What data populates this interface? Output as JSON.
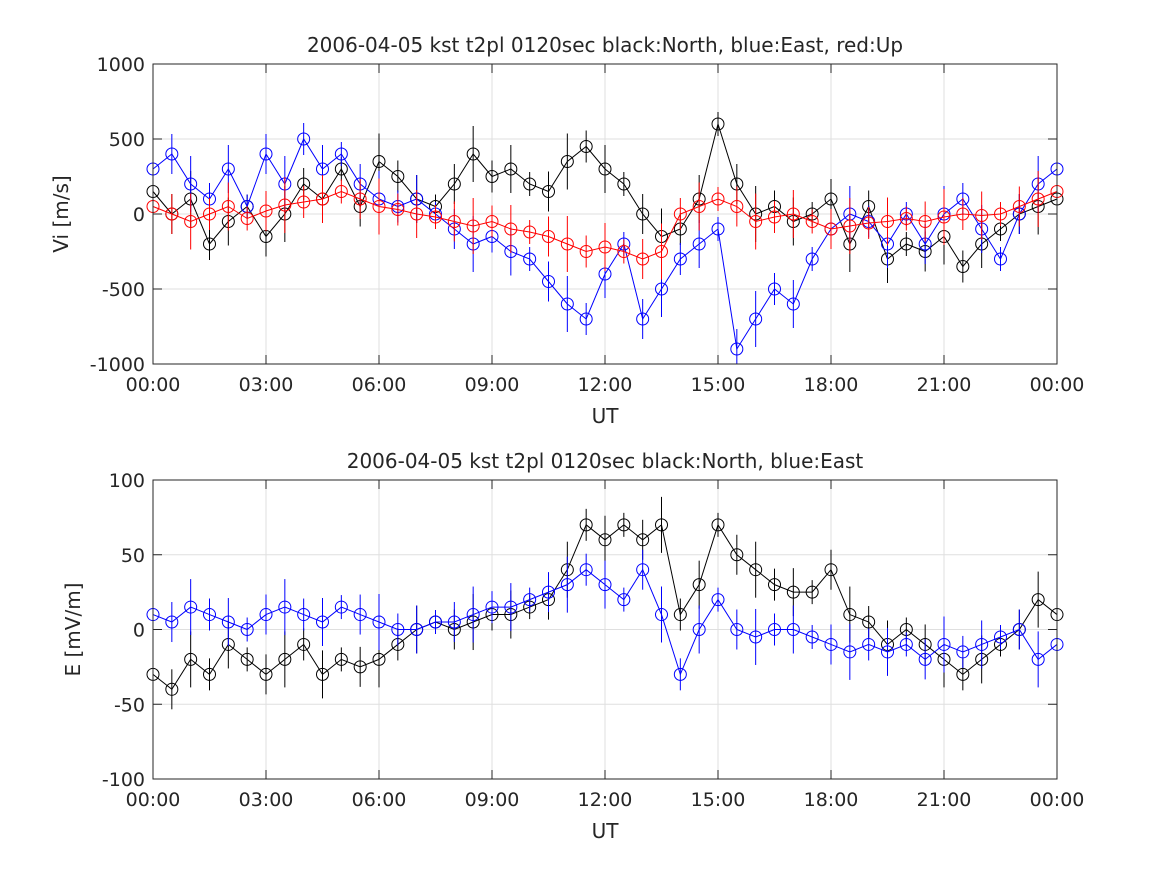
{
  "chart_data": [
    {
      "type": "scatter",
      "title": "2006-04-05 kst t2pl 0120sec black:North, blue:East, red:Up",
      "xlabel": "UT",
      "ylabel": "Vi [m/s]",
      "xlim": [
        0,
        24
      ],
      "ylim": [
        -1000,
        1000
      ],
      "x_ticks": [
        0,
        3,
        6,
        9,
        12,
        15,
        18,
        21,
        24
      ],
      "x_tick_labels": [
        "00:00",
        "03:00",
        "06:00",
        "09:00",
        "12:00",
        "15:00",
        "18:00",
        "21:00",
        "00:00"
      ],
      "y_ticks": [
        -1000,
        -500,
        0,
        500,
        1000
      ],
      "y_tick_labels": [
        "-1000",
        "-500",
        "0",
        "500",
        "1000"
      ],
      "grid": true,
      "marker": "open-circle with vertical error bar",
      "x_unit": "hours UT",
      "series": [
        {
          "color": "#000000",
          "x": [
            0.0,
            0.5,
            1.0,
            1.5,
            2.0,
            2.5,
            3.0,
            3.5,
            4.0,
            4.5,
            5.0,
            5.5,
            6.0,
            6.5,
            7.0,
            7.5,
            8.0,
            8.5,
            9.0,
            9.5,
            10.0,
            10.5,
            11.0,
            11.5,
            12.0,
            12.5,
            13.0,
            13.5,
            14.0,
            14.5,
            15.0,
            15.5,
            16.0,
            16.5,
            17.0,
            17.5,
            18.0,
            18.5,
            19.0,
            19.5,
            20.0,
            20.5,
            21.0,
            21.5,
            22.0,
            22.5,
            23.0,
            23.5,
            24.0
          ],
          "y": [
            150,
            0,
            100,
            -200,
            -50,
            50,
            -150,
            0,
            200,
            100,
            300,
            50,
            350,
            250,
            100,
            50,
            200,
            400,
            250,
            300,
            200,
            150,
            350,
            450,
            300,
            200,
            0,
            -150,
            -100,
            100,
            600,
            200,
            0,
            50,
            -50,
            0,
            100,
            -200,
            50,
            -300,
            -200,
            -250,
            -150,
            -350,
            -200,
            -100,
            0,
            50,
            100
          ]
        },
        {
          "color": "#0000ff",
          "x": [
            0.0,
            0.5,
            1.0,
            1.5,
            2.0,
            2.5,
            3.0,
            3.5,
            4.0,
            4.5,
            5.0,
            5.5,
            6.0,
            6.5,
            7.0,
            7.5,
            8.0,
            8.5,
            9.0,
            9.5,
            10.0,
            10.5,
            11.0,
            11.5,
            12.0,
            12.5,
            13.0,
            13.5,
            14.0,
            14.5,
            15.0,
            15.5,
            16.0,
            16.5,
            17.0,
            17.5,
            18.0,
            18.5,
            19.0,
            19.5,
            20.0,
            20.5,
            21.0,
            21.5,
            22.0,
            22.5,
            23.0,
            23.5,
            24.0
          ],
          "y": [
            300,
            400,
            200,
            100,
            300,
            50,
            400,
            200,
            500,
            300,
            400,
            200,
            100,
            50,
            100,
            0,
            -100,
            -200,
            -150,
            -250,
            -300,
            -450,
            -600,
            -700,
            -400,
            -200,
            -700,
            -500,
            -300,
            -200,
            -100,
            -900,
            -700,
            -500,
            -600,
            -300,
            -100,
            0,
            -50,
            -200,
            0,
            -200,
            0,
            100,
            -100,
            -300,
            0,
            200,
            300
          ]
        },
        {
          "color": "#ff0000",
          "x": [
            0.0,
            0.5,
            1.0,
            1.5,
            2.0,
            2.5,
            3.0,
            3.5,
            4.0,
            4.5,
            5.0,
            5.5,
            6.0,
            6.5,
            7.0,
            7.5,
            8.0,
            8.5,
            9.0,
            9.5,
            10.0,
            10.5,
            11.0,
            11.5,
            12.0,
            12.5,
            13.0,
            13.5,
            14.0,
            14.5,
            15.0,
            15.5,
            16.0,
            16.5,
            17.0,
            17.5,
            18.0,
            18.5,
            19.0,
            19.5,
            20.0,
            20.5,
            21.0,
            21.5,
            22.0,
            22.5,
            23.0,
            23.5,
            24.0
          ],
          "y": [
            50,
            0,
            -50,
            0,
            50,
            -30,
            20,
            60,
            80,
            100,
            150,
            100,
            50,
            30,
            0,
            -20,
            -50,
            -80,
            -50,
            -100,
            -120,
            -150,
            -200,
            -250,
            -220,
            -250,
            -300,
            -250,
            0,
            50,
            100,
            50,
            -50,
            -20,
            0,
            -50,
            -100,
            -80,
            -60,
            -50,
            -30,
            -50,
            -20,
            0,
            -10,
            0,
            50,
            100,
            150
          ]
        }
      ]
    },
    {
      "type": "scatter",
      "title": "2006-04-05 kst t2pl 0120sec black:North, blue:East",
      "xlabel": "UT",
      "ylabel": "E [mV/m]",
      "xlim": [
        0,
        24
      ],
      "ylim": [
        -100,
        100
      ],
      "x_ticks": [
        0,
        3,
        6,
        9,
        12,
        15,
        18,
        21,
        24
      ],
      "x_tick_labels": [
        "00:00",
        "03:00",
        "06:00",
        "09:00",
        "12:00",
        "15:00",
        "18:00",
        "21:00",
        "00:00"
      ],
      "y_ticks": [
        -100,
        -50,
        0,
        50,
        100
      ],
      "y_tick_labels": [
        "-100",
        "-50",
        "0",
        "50",
        "100"
      ],
      "grid": true,
      "marker": "open-circle with vertical error bar",
      "x_unit": "hours UT",
      "series": [
        {
          "color": "#000000",
          "x": [
            0.0,
            0.5,
            1.0,
            1.5,
            2.0,
            2.5,
            3.0,
            3.5,
            4.0,
            4.5,
            5.0,
            5.5,
            6.0,
            6.5,
            7.0,
            7.5,
            8.0,
            8.5,
            9.0,
            9.5,
            10.0,
            10.5,
            11.0,
            11.5,
            12.0,
            12.5,
            13.0,
            13.5,
            14.0,
            14.5,
            15.0,
            15.5,
            16.0,
            16.5,
            17.0,
            17.5,
            18.0,
            18.5,
            19.0,
            19.5,
            20.0,
            20.5,
            21.0,
            21.5,
            22.0,
            22.5,
            23.0,
            23.5,
            24.0
          ],
          "y": [
            -30,
            -40,
            -20,
            -30,
            -10,
            -20,
            -30,
            -20,
            -10,
            -30,
            -20,
            -25,
            -20,
            -10,
            0,
            5,
            0,
            5,
            10,
            10,
            15,
            20,
            40,
            70,
            60,
            70,
            60,
            70,
            10,
            30,
            70,
            50,
            40,
            30,
            25,
            25,
            40,
            10,
            5,
            -10,
            0,
            -10,
            -20,
            -30,
            -20,
            -10,
            0,
            20,
            10
          ]
        },
        {
          "color": "#0000ff",
          "x": [
            0.0,
            0.5,
            1.0,
            1.5,
            2.0,
            2.5,
            3.0,
            3.5,
            4.0,
            4.5,
            5.0,
            5.5,
            6.0,
            6.5,
            7.0,
            7.5,
            8.0,
            8.5,
            9.0,
            9.5,
            10.0,
            10.5,
            11.0,
            11.5,
            12.0,
            12.5,
            13.0,
            13.5,
            14.0,
            14.5,
            15.0,
            15.5,
            16.0,
            16.5,
            17.0,
            17.5,
            18.0,
            18.5,
            19.0,
            19.5,
            20.0,
            20.5,
            21.0,
            21.5,
            22.0,
            22.5,
            23.0,
            23.5,
            24.0
          ],
          "y": [
            10,
            5,
            15,
            10,
            5,
            0,
            10,
            15,
            10,
            5,
            15,
            10,
            5,
            0,
            0,
            5,
            5,
            10,
            15,
            15,
            20,
            25,
            30,
            40,
            30,
            20,
            40,
            10,
            -30,
            0,
            20,
            0,
            -5,
            0,
            0,
            -5,
            -10,
            -15,
            -10,
            -15,
            -10,
            -20,
            -10,
            -15,
            -10,
            -5,
            0,
            -20,
            -10
          ]
        }
      ]
    }
  ]
}
